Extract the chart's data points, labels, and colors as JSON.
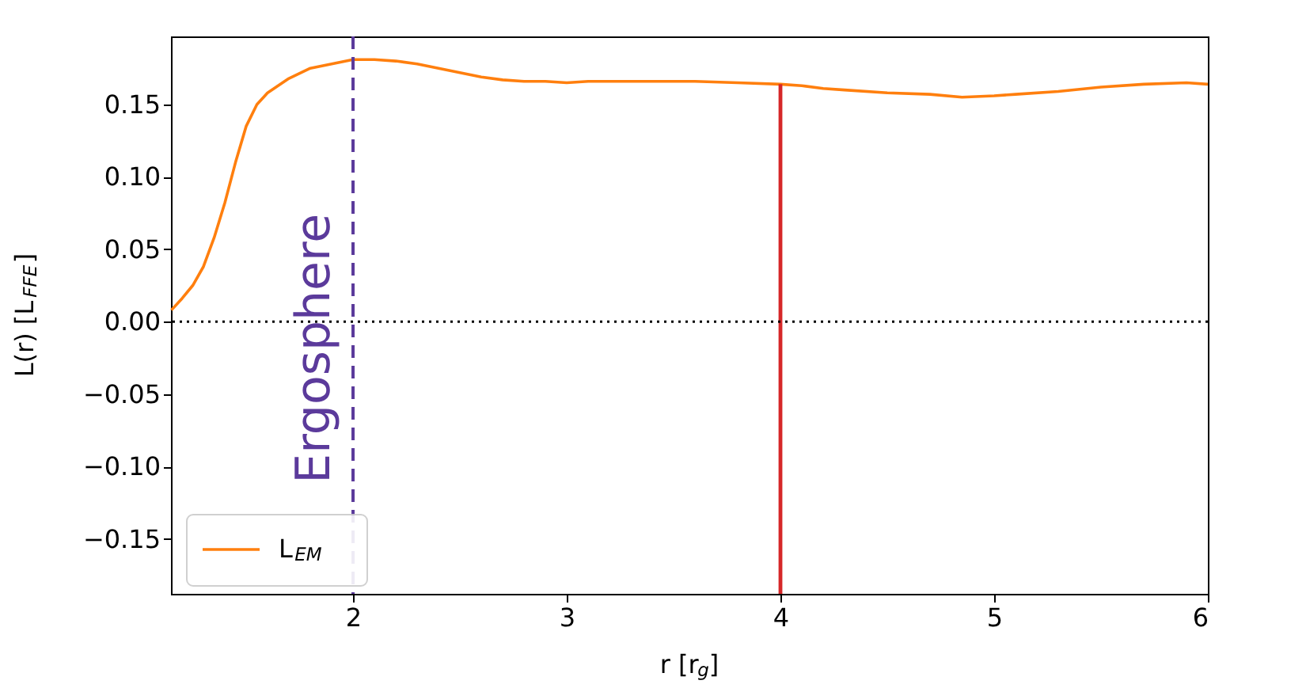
{
  "chart_data": {
    "type": "line",
    "xlabel": "r [r$_{g}$]",
    "ylabel": "L(r) [L$_{FFE}$]",
    "xlim": [
      1.148,
      6
    ],
    "ylim": [
      -0.188,
      0.197
    ],
    "xticks": [
      2,
      3,
      4,
      5,
      6
    ],
    "yticks": [
      {
        "value": -0.15,
        "label": "−0.15"
      },
      {
        "value": -0.1,
        "label": "−0.10"
      },
      {
        "value": -0.05,
        "label": "−0.05"
      },
      {
        "value": 0,
        "label": "0.00"
      },
      {
        "value": 0.05,
        "label": "0.05"
      },
      {
        "value": 0.1,
        "label": "0.10"
      },
      {
        "value": 0.15,
        "label": "0.15"
      }
    ],
    "grid": false,
    "legend": "bottom left",
    "line_style": "solid",
    "marker": "none",
    "series": [
      {
        "name": "L$_{EM}$",
        "type": "line",
        "color": "#ff7f0e",
        "x": [
          1.15,
          1.2,
          1.25,
          1.3,
          1.35,
          1.4,
          1.45,
          1.5,
          1.55,
          1.6,
          1.7,
          1.8,
          1.9,
          2.0,
          2.1,
          2.2,
          2.3,
          2.4,
          2.5,
          2.6,
          2.7,
          2.8,
          2.9,
          3.0,
          3.1,
          3.2,
          3.4,
          3.6,
          3.8,
          4.0,
          4.1,
          4.2,
          4.3,
          4.5,
          4.7,
          4.85,
          5.0,
          5.1,
          5.3,
          5.5,
          5.7,
          5.9,
          6.0
        ],
        "values": [
          0.008,
          0.016,
          0.025,
          0.038,
          0.058,
          0.082,
          0.11,
          0.135,
          0.15,
          0.158,
          0.168,
          0.175,
          0.178,
          0.181,
          0.181,
          0.18,
          0.178,
          0.175,
          0.172,
          0.169,
          0.167,
          0.166,
          0.166,
          0.165,
          0.166,
          0.166,
          0.166,
          0.166,
          0.165,
          0.164,
          0.163,
          0.161,
          0.16,
          0.158,
          0.157,
          0.155,
          0.156,
          0.157,
          0.159,
          0.162,
          0.164,
          0.165,
          0.164
        ]
      },
      {
        "type": "line",
        "color": "#d62728",
        "x": [
          4,
          4
        ],
        "values": [
          -0.188,
          0.164
        ]
      }
    ],
    "ref_lines": [
      {
        "axis": "x",
        "value": 2,
        "label": "Ergosphere",
        "color": "#5b3a9b",
        "line_style": "dashed"
      },
      {
        "axis": "y",
        "value": 0,
        "label": null,
        "color": "#000000",
        "line_style": "dotted"
      }
    ]
  }
}
